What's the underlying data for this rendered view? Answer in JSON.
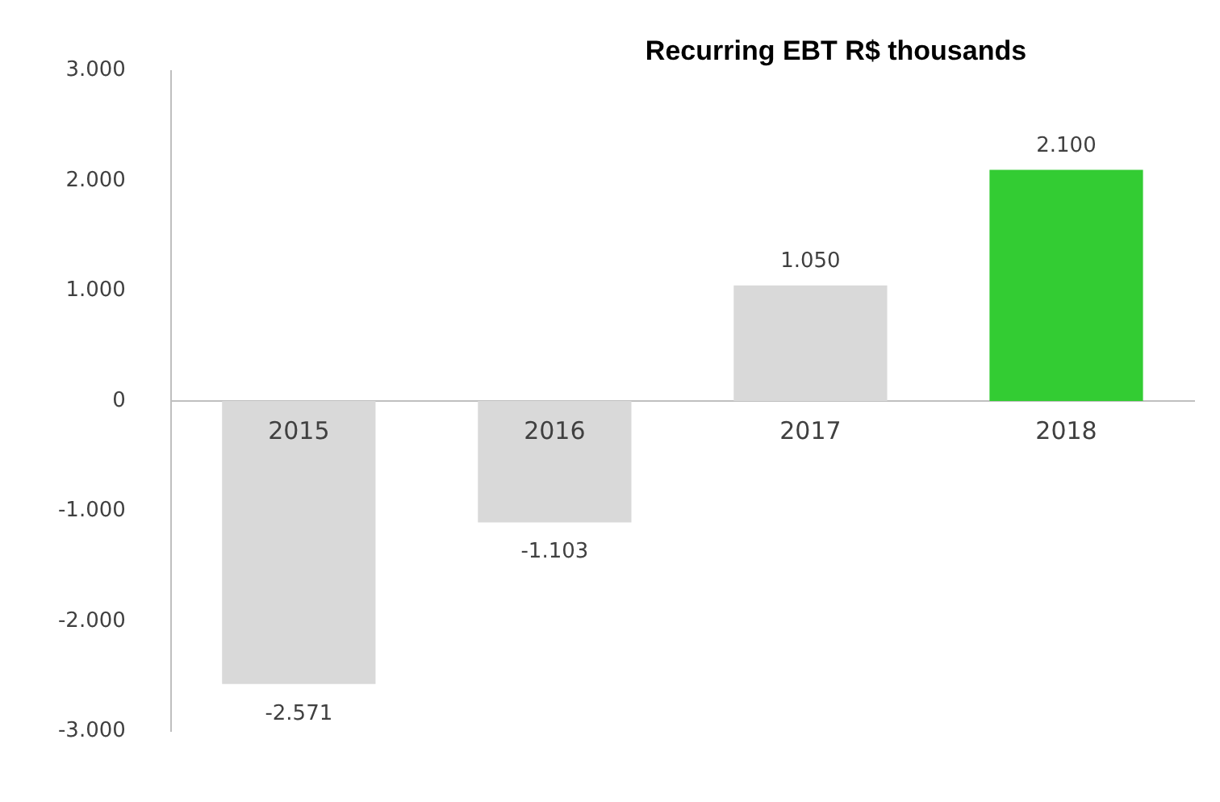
{
  "chart_data": {
    "type": "bar",
    "title": "Recurring EBT R$ thousands",
    "categories": [
      "2015",
      "2016",
      "2017",
      "2018"
    ],
    "values": [
      -2571,
      -1103,
      1050,
      2100
    ],
    "colors": [
      "#d9d9d9",
      "#d9d9d9",
      "#d9d9d9",
      "#33cc33"
    ],
    "value_labels": [
      "-2.571",
      "-1.103",
      "1.050",
      "2.100"
    ],
    "ylim": [
      -3000,
      3000
    ],
    "yticks": [
      {
        "value": -3000,
        "label": "-3.000"
      },
      {
        "value": -2000,
        "label": "-2.000"
      },
      {
        "value": -1000,
        "label": "-1.000"
      },
      {
        "value": 0,
        "label": "0"
      },
      {
        "value": 1000,
        "label": "1.000"
      },
      {
        "value": 2000,
        "label": "2.000"
      },
      {
        "value": 3000,
        "label": "3.000"
      }
    ],
    "grid": false
  }
}
